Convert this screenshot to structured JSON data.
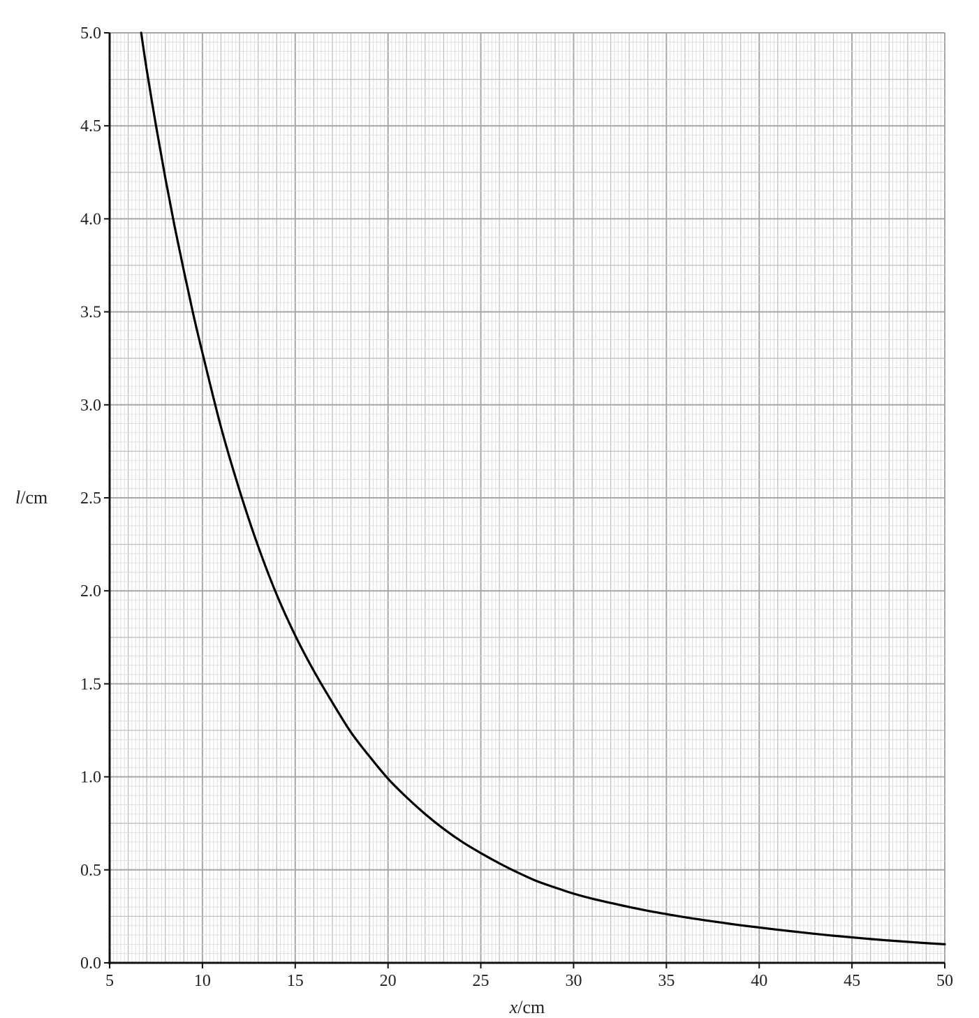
{
  "chart_data": {
    "type": "line",
    "xlabel_var": "x",
    "xlabel_unit": "/cm",
    "ylabel_var": "l",
    "ylabel_unit": "/cm",
    "xlim": [
      5,
      50
    ],
    "ylim": [
      0,
      5.0
    ],
    "x_ticks": [
      5,
      10,
      15,
      20,
      25,
      30,
      35,
      40,
      45,
      50
    ],
    "x_tick_labels": [
      "5",
      "10",
      "15",
      "20",
      "25",
      "30",
      "35",
      "40",
      "45",
      "50"
    ],
    "y_ticks": [
      0,
      0.5,
      1.0,
      1.5,
      2.0,
      2.5,
      3.0,
      3.5,
      4.0,
      4.5,
      5.0
    ],
    "y_tick_labels": [
      "0.0",
      "0.5",
      "1.0",
      "1.5",
      "2.0",
      "2.5",
      "3.0",
      "3.5",
      "4.0",
      "4.5",
      "5.0"
    ],
    "grid": {
      "major": 5,
      "mid": 1,
      "minor": 0.2,
      "y_major": 0.5,
      "y_mid": 0.25,
      "y_minor": 0.05
    },
    "series": [
      {
        "x": [
          6.7,
          7.0,
          7.5,
          8.0,
          8.5,
          9.0,
          9.5,
          10.0,
          11.0,
          12.0,
          13.0,
          14.0,
          15.0,
          16.0,
          17.0,
          18.0,
          19.0,
          20.0,
          21.0,
          22.0,
          23.0,
          24.0,
          25.0,
          26.0,
          27.0,
          28.0,
          29.0,
          30.0,
          31.0,
          32.0,
          33.0,
          34.0,
          35.0,
          36.0,
          37.0,
          38.0,
          39.0,
          40.0,
          41.0,
          42.0,
          43.0,
          44.0,
          45.0,
          46.0,
          47.0,
          48.0,
          49.0,
          50.0
        ],
        "y": [
          5.0,
          4.8,
          4.5,
          4.22,
          3.96,
          3.72,
          3.49,
          3.28,
          2.88,
          2.54,
          2.24,
          1.98,
          1.76,
          1.57,
          1.4,
          1.24,
          1.11,
          0.99,
          0.89,
          0.8,
          0.72,
          0.65,
          0.59,
          0.535,
          0.485,
          0.44,
          0.405,
          0.372,
          0.345,
          0.322,
          0.3,
          0.28,
          0.262,
          0.245,
          0.23,
          0.216,
          0.202,
          0.19,
          0.178,
          0.167,
          0.156,
          0.146,
          0.137,
          0.128,
          0.12,
          0.113,
          0.106,
          0.1
        ]
      }
    ]
  }
}
